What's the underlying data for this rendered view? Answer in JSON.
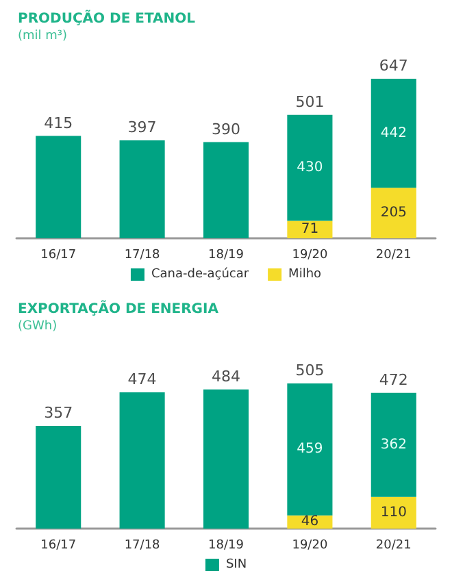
{
  "chart_data": [
    {
      "type": "bar",
      "title": "PRODUÇÃO DE ETANOL",
      "subtitle": "(mil m³)",
      "categories": [
        "16/17",
        "17/18",
        "18/19",
        "19/20",
        "20/21"
      ],
      "stacked": true,
      "legend": "bottom",
      "series": [
        {
          "name": "Milho",
          "color": "#f5dc2a",
          "values": [
            null,
            null,
            null,
            71,
            205
          ],
          "value_labels": [
            null,
            null,
            null,
            "71",
            "205"
          ]
        },
        {
          "name": "Cana-de-açúcar",
          "color": "#00a383",
          "values": [
            415,
            397,
            390,
            430,
            442
          ],
          "value_labels": [
            null,
            null,
            null,
            "430",
            "442"
          ]
        }
      ],
      "totals": [
        "415",
        "397",
        "390",
        "501",
        "647"
      ]
    },
    {
      "type": "bar",
      "title": "EXPORTAÇÃO DE ENERGIA",
      "subtitle": "(GWh)",
      "categories": [
        "16/17",
        "17/18",
        "18/19",
        "19/20",
        "20/21"
      ],
      "stacked": true,
      "legend": "bottom",
      "series": [
        {
          "color": "#f5dc2a",
          "values": [
            null,
            null,
            null,
            46,
            110
          ],
          "value_labels": [
            null,
            null,
            null,
            "46",
            "110"
          ]
        },
        {
          "name": "SIN",
          "color": "#00a383",
          "values": [
            357,
            474,
            484,
            459,
            362
          ],
          "value_labels": [
            null,
            null,
            null,
            "459",
            "362"
          ]
        }
      ],
      "totals": [
        "357",
        "474",
        "484",
        "505",
        "472"
      ]
    }
  ]
}
